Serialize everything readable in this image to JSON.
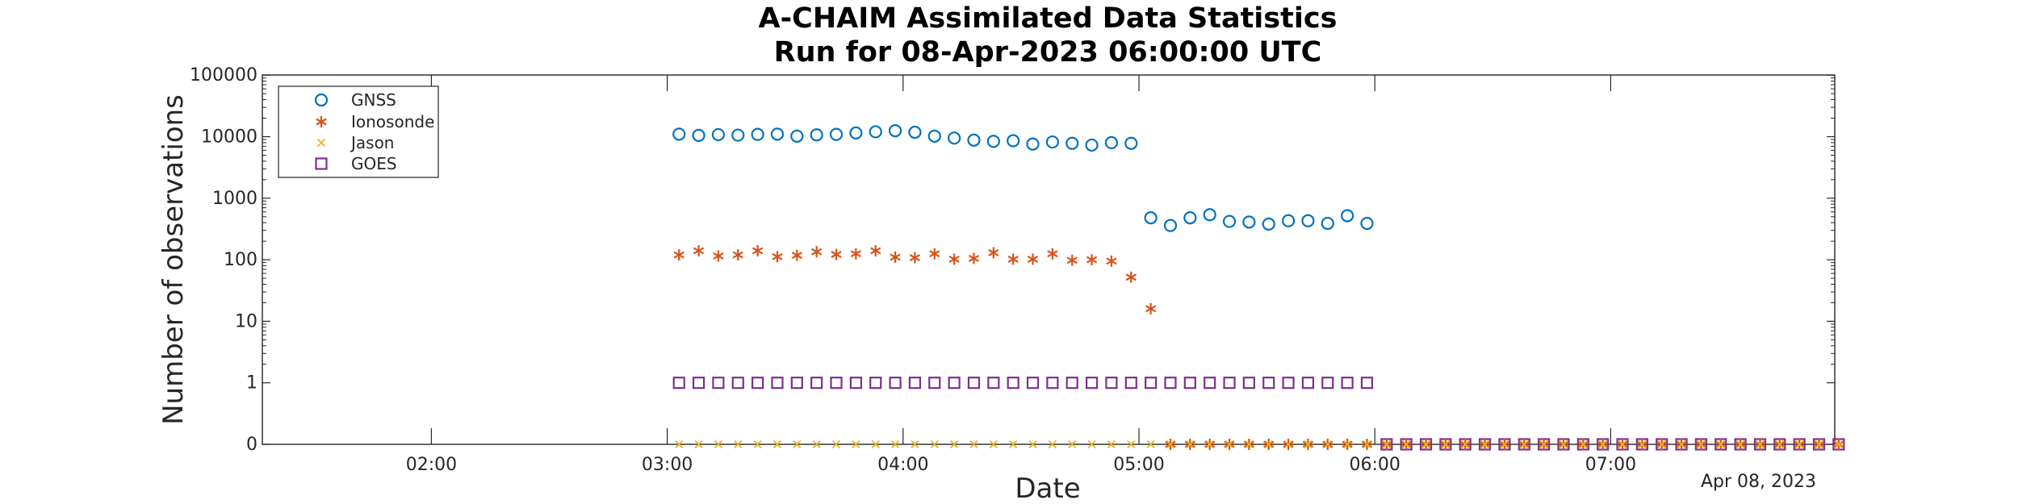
{
  "chart_data": {
    "type": "scatter",
    "title": "A-CHAIM Assimilated Data Statistics",
    "subtitle": "Run for 08-Apr-2023 06:00:00 UTC",
    "xlabel": "Date",
    "ylabel": "Number of observations",
    "date_annotation": "Apr 08, 2023",
    "y_scale": "log (with 0 shown at bottom)",
    "y_ticks": [
      "0",
      "1",
      "10",
      "100",
      "1000",
      "10000",
      "100000"
    ],
    "x_range": [
      "01:17",
      "07:57"
    ],
    "x_ticks": [
      "02:00",
      "03:00",
      "04:00",
      "05:00",
      "06:00",
      "07:00"
    ],
    "legend_position": "top-left",
    "grid": false,
    "series": [
      {
        "name": "GNSS",
        "marker": "circle",
        "color": "#0072BD",
        "x": [
          "03:03",
          "03:08",
          "03:13",
          "03:18",
          "03:23",
          "03:28",
          "03:33",
          "03:38",
          "03:43",
          "03:48",
          "03:53",
          "03:58",
          "04:03",
          "04:08",
          "04:13",
          "04:18",
          "04:23",
          "04:28",
          "04:33",
          "04:38",
          "04:43",
          "04:48",
          "04:53",
          "04:58",
          "05:03",
          "05:08",
          "05:13",
          "05:18",
          "05:23",
          "05:28",
          "05:33",
          "05:38",
          "05:43",
          "05:48",
          "05:53",
          "05:58"
        ],
        "values": [
          11000,
          10500,
          10800,
          10600,
          10900,
          11000,
          10200,
          10700,
          10900,
          11500,
          12000,
          12500,
          11800,
          10200,
          9500,
          8800,
          8400,
          8600,
          7600,
          8200,
          7800,
          7300,
          8000,
          7800,
          480,
          360,
          480,
          540,
          420,
          410,
          380,
          430,
          430,
          390,
          520,
          390
        ]
      },
      {
        "name": "Ionosonde",
        "marker": "asterisk",
        "color": "#D95319",
        "x": [
          "03:03",
          "03:08",
          "03:13",
          "03:18",
          "03:23",
          "03:28",
          "03:33",
          "03:38",
          "03:43",
          "03:48",
          "03:53",
          "03:58",
          "04:03",
          "04:08",
          "04:13",
          "04:18",
          "04:23",
          "04:28",
          "04:33",
          "04:38",
          "04:43",
          "04:48",
          "04:53",
          "04:58",
          "05:03",
          "05:08",
          "05:13",
          "05:18",
          "05:23",
          "05:28",
          "05:33",
          "05:38",
          "05:43",
          "05:48",
          "05:53",
          "05:58",
          "06:03",
          "06:08",
          "06:13",
          "06:18",
          "06:23",
          "06:28",
          "06:33",
          "06:38",
          "06:43",
          "06:48",
          "06:53",
          "06:58",
          "07:03",
          "07:08",
          "07:13",
          "07:18",
          "07:23",
          "07:28",
          "07:33",
          "07:38",
          "07:43",
          "07:48",
          "07:53",
          "07:58"
        ],
        "values": [
          120,
          140,
          115,
          120,
          140,
          112,
          118,
          135,
          122,
          125,
          140,
          110,
          108,
          125,
          102,
          105,
          130,
          102,
          102,
          125,
          98,
          100,
          95,
          52,
          16,
          0,
          0,
          0,
          0,
          0,
          0,
          0,
          0,
          0,
          0,
          0,
          0,
          0,
          0,
          0,
          0,
          0,
          0,
          0,
          0,
          0,
          0,
          0,
          0,
          0,
          0,
          0,
          0,
          0,
          0,
          0,
          0,
          0,
          0,
          0
        ]
      },
      {
        "name": "Jason",
        "marker": "x",
        "color": "#EDB120",
        "x": [
          "03:03",
          "03:08",
          "03:13",
          "03:18",
          "03:23",
          "03:28",
          "03:33",
          "03:38",
          "03:43",
          "03:48",
          "03:53",
          "03:58",
          "04:03",
          "04:08",
          "04:13",
          "04:18",
          "04:23",
          "04:28",
          "04:33",
          "04:38",
          "04:43",
          "04:48",
          "04:53",
          "04:58",
          "05:03",
          "05:08",
          "05:13",
          "05:18",
          "05:23",
          "05:28",
          "05:33",
          "05:38",
          "05:43",
          "05:48",
          "05:53",
          "05:58",
          "06:03",
          "06:08",
          "06:13",
          "06:18",
          "06:23",
          "06:28",
          "06:33",
          "06:38",
          "06:43",
          "06:48",
          "06:53",
          "06:58",
          "07:03",
          "07:08",
          "07:13",
          "07:18",
          "07:23",
          "07:28",
          "07:33",
          "07:38",
          "07:43",
          "07:48",
          "07:53",
          "07:58"
        ],
        "values": [
          0,
          0,
          0,
          0,
          0,
          0,
          0,
          0,
          0,
          0,
          0,
          0,
          0,
          0,
          0,
          0,
          0,
          0,
          0,
          0,
          0,
          0,
          0,
          0,
          0,
          0,
          0,
          0,
          0,
          0,
          0,
          0,
          0,
          0,
          0,
          0,
          0,
          0,
          0,
          0,
          0,
          0,
          0,
          0,
          0,
          0,
          0,
          0,
          0,
          0,
          0,
          0,
          0,
          0,
          0,
          0,
          0,
          0,
          0,
          0
        ]
      },
      {
        "name": "GOES",
        "marker": "square",
        "color": "#7E2F8E",
        "x": [
          "03:03",
          "03:08",
          "03:13",
          "03:18",
          "03:23",
          "03:28",
          "03:33",
          "03:38",
          "03:43",
          "03:48",
          "03:53",
          "03:58",
          "04:03",
          "04:08",
          "04:13",
          "04:18",
          "04:23",
          "04:28",
          "04:33",
          "04:38",
          "04:43",
          "04:48",
          "04:53",
          "04:58",
          "05:03",
          "05:08",
          "05:13",
          "05:18",
          "05:23",
          "05:28",
          "05:33",
          "05:38",
          "05:43",
          "05:48",
          "05:53",
          "05:58",
          "06:03",
          "06:08",
          "06:13",
          "06:18",
          "06:23",
          "06:28",
          "06:33",
          "06:38",
          "06:43",
          "06:48",
          "06:53",
          "06:58",
          "07:03",
          "07:08",
          "07:13",
          "07:18",
          "07:23",
          "07:28",
          "07:33",
          "07:38",
          "07:43",
          "07:48",
          "07:53",
          "07:58"
        ],
        "values": [
          1,
          1,
          1,
          1,
          1,
          1,
          1,
          1,
          1,
          1,
          1,
          1,
          1,
          1,
          1,
          1,
          1,
          1,
          1,
          1,
          1,
          1,
          1,
          1,
          1,
          1,
          1,
          1,
          1,
          1,
          1,
          1,
          1,
          1,
          1,
          1,
          0,
          0,
          0,
          0,
          0,
          0,
          0,
          0,
          0,
          0,
          0,
          0,
          0,
          0,
          0,
          0,
          0,
          0,
          0,
          0,
          0,
          0,
          0,
          0
        ]
      }
    ]
  }
}
